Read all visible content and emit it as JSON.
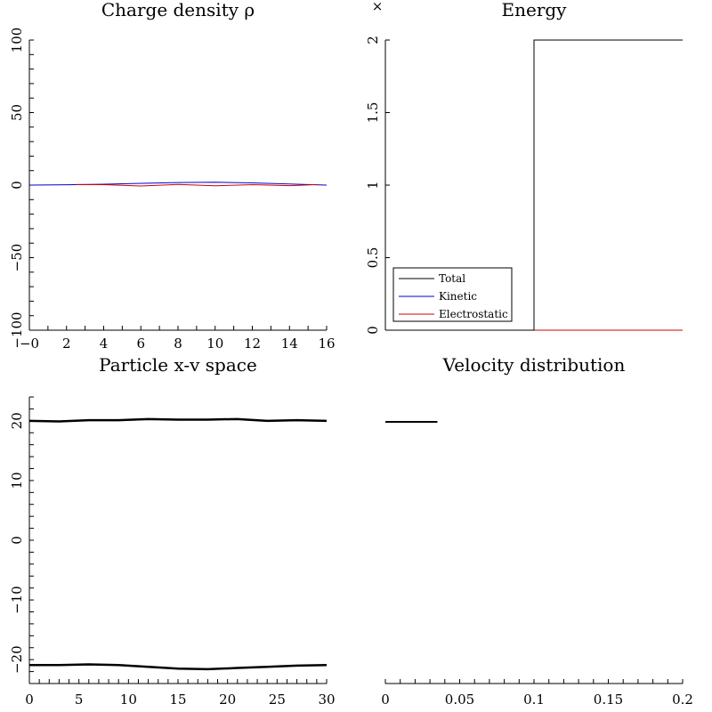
{
  "chart_data": [
    {
      "id": "charge",
      "type": "line",
      "title": "Charge density ρ",
      "xlabel": "",
      "ylabel": "",
      "xlim": [
        0,
        16
      ],
      "ylim": [
        -100,
        100
      ],
      "xticks": [
        0,
        2,
        4,
        6,
        8,
        10,
        12,
        14,
        16
      ],
      "xtick_labels": [
        "−0",
        "2",
        "4",
        "6",
        "8",
        "10",
        "12",
        "14",
        "16"
      ],
      "yticks": [
        -100,
        -50,
        0,
        50,
        100
      ],
      "ytick_labels": [
        "−100",
        "−50",
        "0",
        "50",
        "100"
      ],
      "series": [
        {
          "color": "#0000cc",
          "x": [
            0,
            2,
            4,
            6,
            8,
            10,
            12,
            14,
            16
          ],
          "y": [
            0,
            0.2,
            0.6,
            1.2,
            1.8,
            2.0,
            1.5,
            0.8,
            0
          ]
        },
        {
          "color": "#cc0000",
          "x": [
            2.5,
            4,
            6,
            8,
            10,
            12,
            14,
            15.5
          ],
          "y": [
            0.4,
            0.3,
            -0.6,
            0.5,
            -0.5,
            0.3,
            -0.4,
            0.4
          ]
        }
      ]
    },
    {
      "id": "energy",
      "type": "line",
      "title": "Energy",
      "multiplier": "×",
      "xlabel": "",
      "ylabel": "",
      "xlim": [
        0,
        1
      ],
      "ylim": [
        0,
        2
      ],
      "yticks": [
        0,
        0.5,
        1,
        1.5,
        2
      ],
      "ytick_labels": [
        "0",
        "0.5",
        "1",
        "1.5",
        "2"
      ],
      "legend_position": "bottom-left",
      "series": [
        {
          "name": "Total",
          "color": "#000000",
          "x": [
            0,
            0.5,
            0.5,
            1
          ],
          "y": [
            0,
            0,
            2,
            2
          ]
        },
        {
          "name": "Kinetic",
          "color": "#0000cc",
          "x": [
            0,
            1
          ],
          "y": [
            0,
            0
          ]
        },
        {
          "name": "Electrostatic",
          "color": "#cc0000",
          "x": [
            0,
            1
          ],
          "y": [
            0,
            0
          ]
        },
        {
          "color": "#008000",
          "x": [
            0,
            1
          ],
          "y": [
            0,
            0
          ]
        }
      ]
    },
    {
      "id": "phase",
      "type": "scatter",
      "title": "Particle x-v space",
      "xlabel": "",
      "ylabel": "",
      "xlim": [
        0,
        30
      ],
      "ylim": [
        -24,
        24
      ],
      "xticks": [
        0,
        5,
        10,
        15,
        20,
        25,
        30
      ],
      "xtick_labels": [
        "0",
        "5",
        "10",
        "15",
        "20",
        "25",
        "30"
      ],
      "yticks": [
        -20,
        -10,
        0,
        10,
        20
      ],
      "ytick_labels": [
        "−20",
        "−10",
        "0",
        "10",
        "20"
      ],
      "series": [
        {
          "color": "#000000",
          "x": [
            0,
            3,
            6,
            9,
            12,
            15,
            18,
            21,
            24,
            27,
            30
          ],
          "y": [
            20.0,
            19.9,
            20.1,
            20.1,
            20.3,
            20.2,
            20.2,
            20.3,
            20.0,
            20.1,
            20.0
          ]
        },
        {
          "color": "#000000",
          "x": [
            0,
            3,
            6,
            9,
            12,
            15,
            18,
            21,
            24,
            27,
            30
          ],
          "y": [
            -20.9,
            -20.9,
            -20.8,
            -20.9,
            -21.2,
            -21.5,
            -21.6,
            -21.4,
            -21.2,
            -21.0,
            -20.9
          ]
        }
      ]
    },
    {
      "id": "velocity",
      "type": "line",
      "title": "Velocity distribution",
      "xlabel": "",
      "ylabel": "",
      "xlim": [
        0,
        0.2
      ],
      "xticks": [
        0,
        0.05,
        0.1,
        0.15,
        0.2
      ],
      "xtick_labels": [
        "0",
        "0.05",
        "0.1",
        "0.15",
        "0.2"
      ],
      "series": [
        {
          "color": "#000000",
          "x": [
            0,
            0.035
          ],
          "y": [
            1,
            1
          ]
        }
      ]
    }
  ]
}
